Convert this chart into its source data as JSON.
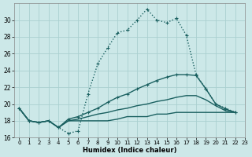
{
  "xlabel": "Humidex (Indice chaleur)",
  "bg_color": "#cce8e8",
  "grid_color": "#aad0d0",
  "line_color": "#1a6060",
  "xlim": [
    -0.5,
    23
  ],
  "ylim": [
    16,
    32
  ],
  "yticks": [
    16,
    18,
    20,
    22,
    24,
    26,
    28,
    30
  ],
  "xticks": [
    0,
    1,
    2,
    3,
    4,
    5,
    6,
    7,
    8,
    9,
    10,
    11,
    12,
    13,
    14,
    15,
    16,
    17,
    18,
    19,
    20,
    21,
    22,
    23
  ],
  "series": [
    {
      "x": [
        0,
        1,
        2,
        3,
        4,
        5,
        6,
        7,
        8,
        9,
        10,
        11,
        12,
        13,
        14,
        15,
        16,
        17,
        18,
        19,
        20,
        21,
        22
      ],
      "y": [
        19.5,
        18.0,
        17.8,
        18.0,
        17.2,
        16.5,
        16.8,
        21.2,
        24.8,
        26.7,
        28.5,
        28.8,
        30.0,
        31.3,
        30.0,
        29.7,
        30.2,
        28.2,
        23.5,
        21.8,
        20.0,
        19.5,
        19.0
      ],
      "marker": "+",
      "linestyle": "dotted",
      "lw": 1.0
    },
    {
      "x": [
        0,
        1,
        2,
        3,
        4,
        5,
        6,
        7,
        8,
        9,
        10,
        11,
        12,
        13,
        14,
        15,
        16,
        17,
        18,
        19,
        20,
        21,
        22
      ],
      "y": [
        19.5,
        18.0,
        17.8,
        18.0,
        17.2,
        18.2,
        18.5,
        19.0,
        19.5,
        20.2,
        20.8,
        21.2,
        21.8,
        22.3,
        22.8,
        23.2,
        23.5,
        23.5,
        23.4,
        21.8,
        20.0,
        19.4,
        19.0
      ],
      "marker": "+",
      "linestyle": "solid",
      "lw": 1.0
    },
    {
      "x": [
        0,
        1,
        2,
        3,
        4,
        5,
        6,
        7,
        8,
        9,
        10,
        11,
        12,
        13,
        14,
        15,
        16,
        17,
        18,
        19,
        20,
        21,
        22
      ],
      "y": [
        19.5,
        18.0,
        17.8,
        18.0,
        17.2,
        18.0,
        18.2,
        18.5,
        18.8,
        19.0,
        19.3,
        19.5,
        19.8,
        20.0,
        20.3,
        20.5,
        20.8,
        21.0,
        21.0,
        20.5,
        19.8,
        19.2,
        19.0
      ],
      "marker": null,
      "linestyle": "solid",
      "lw": 1.0
    },
    {
      "x": [
        0,
        1,
        2,
        3,
        4,
        5,
        6,
        7,
        8,
        9,
        10,
        11,
        12,
        13,
        14,
        15,
        16,
        17,
        18,
        19,
        20,
        21,
        22
      ],
      "y": [
        19.5,
        18.0,
        17.8,
        18.0,
        17.2,
        18.0,
        18.0,
        18.0,
        18.0,
        18.0,
        18.2,
        18.5,
        18.5,
        18.5,
        18.8,
        18.8,
        19.0,
        19.0,
        19.0,
        19.0,
        19.0,
        19.0,
        19.0
      ],
      "marker": null,
      "linestyle": "solid",
      "lw": 1.0
    }
  ]
}
